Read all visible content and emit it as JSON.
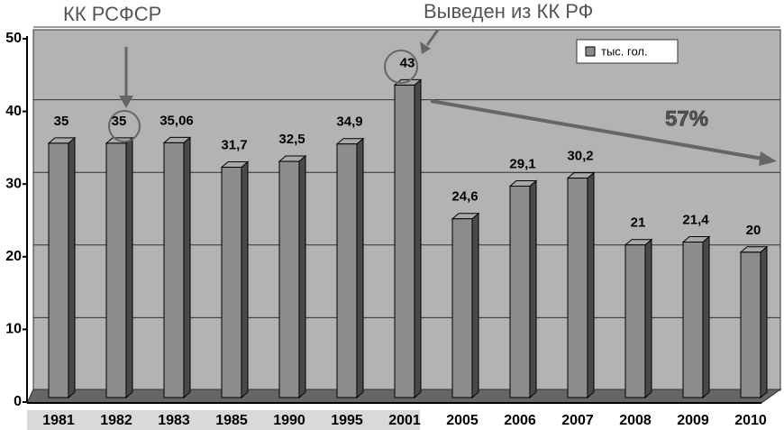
{
  "chart_data": {
    "type": "bar",
    "categories": [
      "1981",
      "1982",
      "1983",
      "1985",
      "1990",
      "1995",
      "2001",
      "2005",
      "2006",
      "2007",
      "2008",
      "2009",
      "2010"
    ],
    "series": [
      {
        "name": "тыс. гол.",
        "color": "#8c8c8c",
        "values": [
          35,
          35,
          35.06,
          31.7,
          32.5,
          34.9,
          43,
          24.6,
          29.1,
          30.2,
          21,
          21.4,
          20
        ],
        "value_labels": [
          "35",
          "35",
          "35,06",
          "31,7",
          "32,5",
          "34,9",
          "43",
          "24,6",
          "29,1",
          "30,2",
          "21",
          "21,4",
          "20"
        ]
      }
    ],
    "ylim": [
      0,
      50
    ],
    "yticks": [
      0,
      10,
      20,
      30,
      40,
      50
    ],
    "grid": true,
    "annotations": [
      "КК РСФСР",
      "Выведен из КК РФ",
      "57%"
    ]
  }
}
